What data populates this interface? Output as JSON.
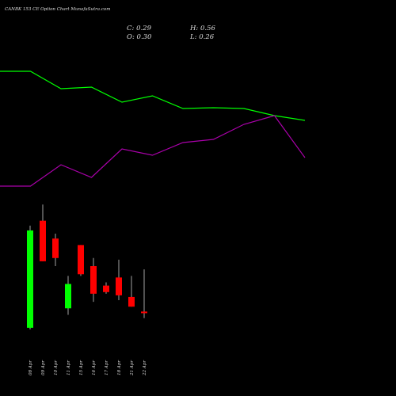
{
  "chart_data": [
    {
      "type": "candlestick",
      "title": "CANBK 153 CE Option  Chart MunafaSutra.com",
      "ohlc_labels": [
        "C: 0.29",
        "H: 0.56",
        "O: 0.30",
        "L: 0.26"
      ],
      "categories": [
        "08 Apr",
        "09 Apr",
        "10 Apr",
        "11 Apr",
        "15 Apr",
        "16 Apr",
        "17 Apr",
        "18 Apr",
        "21 Apr",
        "22 Apr"
      ],
      "open": [
        0.2,
        0.86,
        0.75,
        0.32,
        0.71,
        0.58,
        0.46,
        0.51,
        0.39,
        0.3
      ],
      "high": [
        0.83,
        0.96,
        0.78,
        0.52,
        0.71,
        0.63,
        0.48,
        0.62,
        0.52,
        0.56
      ],
      "low": [
        0.19,
        0.61,
        0.58,
        0.28,
        0.52,
        0.36,
        0.41,
        0.37,
        0.33,
        0.26
      ],
      "close": [
        0.8,
        0.61,
        0.63,
        0.47,
        0.53,
        0.41,
        0.42,
        0.4,
        0.33,
        0.29
      ],
      "up_color": "#00ff00",
      "down_color": "#ff0000",
      "ylim": [
        0.17,
        1.0
      ]
    },
    {
      "type": "line",
      "x": [
        0,
        1,
        2,
        3,
        4,
        5,
        6,
        7,
        8,
        9,
        10
      ],
      "xlim": [
        0,
        10
      ],
      "ylim": [
        0,
        100
      ],
      "series": [
        {
          "color": "#00ff00",
          "values": [
            85,
            85,
            74,
            75,
            65.5,
            69.5,
            61.5,
            62,
            61.5,
            57,
            54
          ]
        },
        {
          "color": "#aa00aa",
          "values": [
            12.5,
            12.5,
            26,
            18,
            36,
            32,
            40,
            42,
            51.5,
            57,
            30.5
          ]
        }
      ]
    }
  ]
}
